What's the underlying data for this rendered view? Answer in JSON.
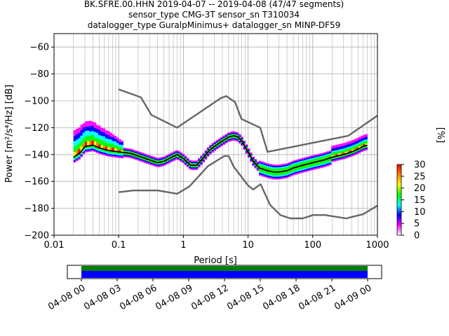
{
  "chart_data": {
    "type": "heatmap",
    "title_lines": [
      "BK.SFRE.00.HHN   2019-04-07 -- 2019-04-08  (47/47 segments)",
      "sensor_type CMG-3T sensor_sn T310034",
      "datalogger_type GuralpMinimus+ datalogger_sn MINP-DF59"
    ],
    "xlabel": "Period [s]",
    "ylabel": "Power [m²/s⁴/Hz] [dB]",
    "x_scale": "log",
    "xlim": [
      0.01,
      1000
    ],
    "ylim": [
      -200,
      -50
    ],
    "x_ticks": [
      {
        "value": 0.01,
        "label": "0.01"
      },
      {
        "value": 0.1,
        "label": "0.1"
      },
      {
        "value": 1,
        "label": "1"
      },
      {
        "value": 10,
        "label": "10"
      },
      {
        "value": 100,
        "label": "100"
      },
      {
        "value": 1000,
        "label": "1000"
      }
    ],
    "y_ticks": [
      {
        "value": -60,
        "label": "−60"
      },
      {
        "value": -80,
        "label": "−80"
      },
      {
        "value": -100,
        "label": "−100"
      },
      {
        "value": -120,
        "label": "−120"
      },
      {
        "value": -140,
        "label": "−140"
      },
      {
        "value": -160,
        "label": "−160"
      },
      {
        "value": -180,
        "label": "−180"
      },
      {
        "value": -200,
        "label": "−200"
      }
    ],
    "grid": true,
    "colorbar": {
      "label": "[%]",
      "min": 0,
      "max": 30,
      "ticks": [
        {
          "value": 0,
          "label": "0"
        },
        {
          "value": 5,
          "label": "5"
        },
        {
          "value": 10,
          "label": "10"
        },
        {
          "value": 15,
          "label": "15"
        },
        {
          "value": 20,
          "label": "20"
        },
        {
          "value": 25,
          "label": "25"
        },
        {
          "value": 30,
          "label": "30"
        }
      ],
      "colors": [
        "#ffffff",
        "#ff00ff",
        "#0000ff",
        "#00ffff",
        "#00ff00",
        "#ffff00",
        "#ff7f00",
        "#ff0000"
      ]
    },
    "series": [
      {
        "role": "median",
        "color": "#000000",
        "x": [
          0.02,
          0.025,
          0.03,
          0.04,
          0.05,
          0.07,
          0.1,
          0.15,
          0.2,
          0.3,
          0.4,
          0.5,
          0.6,
          0.8,
          1.0,
          1.3,
          1.6,
          2.0,
          2.5,
          3.0,
          4.0,
          5.0,
          6.0,
          7.0,
          8.0,
          10,
          12,
          15,
          20,
          25,
          30,
          40,
          50,
          70,
          100,
          150,
          200,
          300,
          400,
          500,
          600,
          700
        ],
        "y": [
          -142,
          -139,
          -134,
          -133,
          -135,
          -137,
          -138,
          -139,
          -141,
          -144,
          -146,
          -145,
          -143,
          -140,
          -143,
          -148,
          -148,
          -143,
          -137,
          -134,
          -130,
          -127,
          -126,
          -127,
          -130,
          -138,
          -145,
          -150,
          -152,
          -153,
          -153,
          -152,
          -150,
          -148,
          -146,
          -144,
          -142,
          -140,
          -138,
          -136,
          -134,
          -133
        ]
      },
      {
        "role": "noise-model-high",
        "color": "#666666",
        "x": [
          0.1,
          0.22,
          0.32,
          0.8,
          3.8,
          4.6,
          6.3,
          7.9,
          15.4,
          20,
          354.8,
          1000
        ],
        "y": [
          -91.5,
          -97.4,
          -110.5,
          -120,
          -98,
          -96.5,
          -101,
          -113.5,
          -120,
          -138,
          -126,
          -111
        ]
      },
      {
        "role": "noise-model-low",
        "color": "#666666",
        "x": [
          0.1,
          0.17,
          0.4,
          0.8,
          1.24,
          2.4,
          4.3,
          5.0,
          6.0,
          10,
          12,
          15.6,
          21.9,
          31.6,
          45,
          70,
          101,
          154,
          328,
          600,
          1000
        ],
        "y": [
          -168,
          -166.7,
          -166.7,
          -169.2,
          -163.7,
          -148.6,
          -141.1,
          -141.1,
          -149,
          -163,
          -166,
          -162,
          -177.5,
          -185,
          -187.5,
          -187.5,
          -185,
          -185,
          -187.5,
          -184.4,
          -178
        ]
      }
    ],
    "density_cells_note": "colored probability density around the median curve",
    "timeline": {
      "tick_labels": [
        "04-08 00",
        "04-08 03",
        "04-08 06",
        "04-08 09",
        "04-08 12",
        "04-08 15",
        "04-08 18",
        "04-08 21",
        "04-09 00"
      ],
      "bar_colors": [
        "#008000",
        "#0000ff"
      ]
    }
  }
}
